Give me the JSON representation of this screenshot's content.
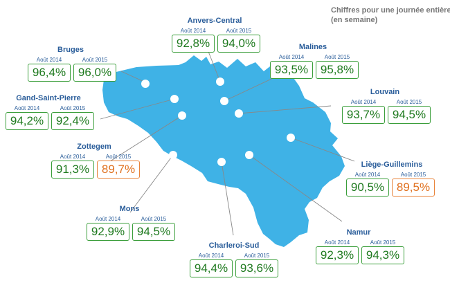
{
  "note": {
    "line1": "Chiffres pour une journée entière",
    "line2": "(en semaine)"
  },
  "colors": {
    "map_fill": "#3fb2e6",
    "good": "#1f7a1f",
    "bad": "#e0701e",
    "label": "#2a5d9a"
  },
  "stations": [
    {
      "id": "anvers-central",
      "name": "Anvers-Central",
      "year1": "Août 2014",
      "year2": "Août 2015",
      "v2014": "92,8%",
      "v2015": "94,0%",
      "bad2014": false,
      "bad2015": false
    },
    {
      "id": "bruges",
      "name": "Bruges",
      "year1": "Août 2014",
      "year2": "Août 2015",
      "v2014": "96,4%",
      "v2015": "96,0%",
      "bad2014": false,
      "bad2015": false
    },
    {
      "id": "malines",
      "name": "Malines",
      "year1": "Août 2014",
      "year2": "Août 2015",
      "v2014": "93,5%",
      "v2015": "95,8%",
      "bad2014": false,
      "bad2015": false
    },
    {
      "id": "gand-saint-pierre",
      "name": "Gand-Saint-Pierre",
      "year1": "Août 2014",
      "year2": "Août 2015",
      "v2014": "94,2%",
      "v2015": "92,4%",
      "bad2014": false,
      "bad2015": false
    },
    {
      "id": "louvain",
      "name": "Louvain",
      "year1": "Août 2014",
      "year2": "Août 2015",
      "v2014": "93,7%",
      "v2015": "94,5%",
      "bad2014": false,
      "bad2015": false
    },
    {
      "id": "zottegem",
      "name": "Zottegem",
      "year1": "Août 2014",
      "year2": "Août 2015",
      "v2014": "91,3%",
      "v2015": "89,7%",
      "bad2014": false,
      "bad2015": true
    },
    {
      "id": "liege-guillemins",
      "name": "Liège-Guillemins",
      "year1": "Août 2014",
      "year2": "Août 2015",
      "v2014": "90,5%",
      "v2015": "89,5%",
      "bad2014": false,
      "bad2015": true
    },
    {
      "id": "mons",
      "name": "Mons",
      "year1": "Août 2014",
      "year2": "Août 2015",
      "v2014": "92,9%",
      "v2015": "94,5%",
      "bad2014": false,
      "bad2015": false
    },
    {
      "id": "namur",
      "name": "Namur",
      "year1": "Août 2014",
      "year2": "Août 2015",
      "v2014": "92,3%",
      "v2015": "94,3%",
      "bad2014": false,
      "bad2015": false
    },
    {
      "id": "charleroi-sud",
      "name": "Charleroi-Sud",
      "year1": "Août 2014",
      "year2": "Août 2015",
      "v2014": "94,4%",
      "v2015": "93,6%",
      "bad2014": false,
      "bad2015": false
    }
  ]
}
